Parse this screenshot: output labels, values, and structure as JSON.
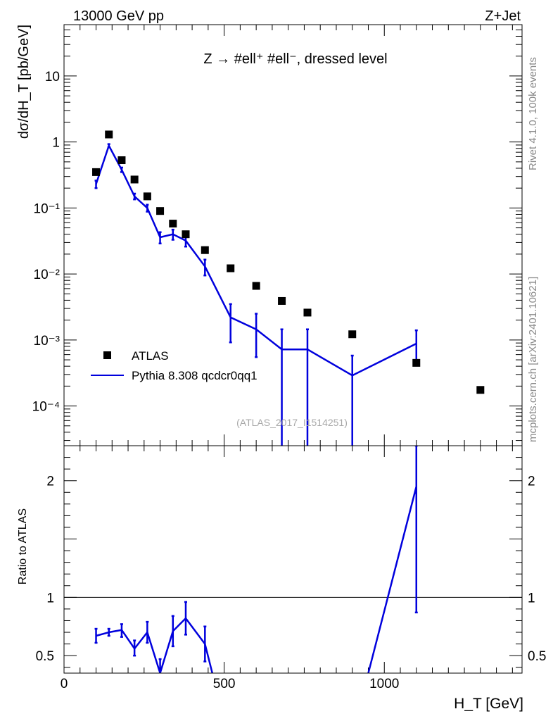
{
  "header": {
    "beam": "13000 GeV pp",
    "process": "Z+Jet"
  },
  "side_labels": {
    "rivet": "Rivet 4.1.0,  100k events",
    "mcplots": "mcplots.cern.ch [arXiv:2401.10621]"
  },
  "chart_data": {
    "type": "scatter",
    "title": "Z → #ell⁺ #ell⁻, dressed level",
    "analysis_label": "(ATLAS_2017_I1514251)",
    "xlabel": "H_T [GeV]",
    "xlim": [
      0,
      1430
    ],
    "xticks": [
      0,
      500,
      1000
    ],
    "main_panel": {
      "ylabel": "dσ/dH_T [pb/GeV]",
      "yscale": "log",
      "ylim": [
        2.5e-05,
        60
      ],
      "yticks": [
        {
          "value": 10,
          "label": "10"
        },
        {
          "value": 1,
          "label": "1"
        },
        {
          "value": 0.1,
          "label": "10⁻¹"
        },
        {
          "value": 0.01,
          "label": "10⁻²"
        },
        {
          "value": 0.001,
          "label": "10⁻³"
        },
        {
          "value": 0.0001,
          "label": "10⁻⁴"
        }
      ],
      "legend_placement": "lower-left",
      "series": [
        {
          "name": "ATLAS",
          "style": "markers",
          "color": "#000000",
          "x": [
            100,
            140,
            180,
            220,
            260,
            300,
            340,
            380,
            440,
            520,
            600,
            680,
            760,
            900,
            1100,
            1300
          ],
          "y": [
            0.35,
            1.3,
            0.53,
            0.27,
            0.15,
            0.09,
            0.058,
            0.04,
            0.023,
            0.0122,
            0.0066,
            0.0039,
            0.0026,
            0.00122,
            0.00045,
            0.000175
          ]
        },
        {
          "name": "Pythia 8.308 qcdcr0qq1",
          "style": "line",
          "color": "#0000dd",
          "x": [
            100,
            140,
            180,
            220,
            260,
            300,
            340,
            380,
            440,
            520,
            600,
            680,
            760,
            900,
            1100
          ],
          "y": [
            0.23,
            0.88,
            0.38,
            0.15,
            0.1,
            0.036,
            0.04,
            0.032,
            0.013,
            0.0022,
            0.00145,
            0.00072,
            0.00072,
            0.00029,
            0.00088
          ],
          "err_low": [
            0.2,
            0.83,
            0.35,
            0.135,
            0.088,
            0.029,
            0.033,
            0.026,
            0.0095,
            0.00092,
            0.00055,
            1e-05,
            1e-05,
            1e-05,
            0.00045
          ],
          "err_high": [
            0.26,
            0.93,
            0.41,
            0.165,
            0.112,
            0.043,
            0.047,
            0.038,
            0.0165,
            0.0035,
            0.0025,
            0.00145,
            0.00145,
            0.00058,
            0.0014
          ]
        }
      ]
    },
    "ratio_panel": {
      "ylabel": "Ratio to ATLAS",
      "ylim": [
        0.35,
        2.3
      ],
      "yticks": [
        {
          "value": 0.5,
          "label": "0.5"
        },
        {
          "value": 1,
          "label": "1"
        },
        {
          "value": 2,
          "label": "2"
        }
      ],
      "reference_line": 1,
      "series": [
        {
          "name": "Pythia 8.308 qcdcr0qq1",
          "color": "#0000dd",
          "x": [
            100,
            140,
            180,
            220,
            260,
            300,
            340,
            380,
            440,
            463,
            950,
            1100
          ],
          "y": [
            0.67,
            0.7,
            0.72,
            0.56,
            0.7,
            0.35,
            0.71,
            0.82,
            0.6,
            0.35,
            0.35,
            1.95
          ],
          "err_low": [
            0.61,
            0.67,
            0.66,
            0.5,
            0.61,
            0.22,
            0.58,
            0.68,
            0.45,
            null,
            null,
            0.87
          ],
          "err_high": [
            0.73,
            0.73,
            0.77,
            0.63,
            0.79,
            0.47,
            0.84,
            0.96,
            0.75,
            null,
            null,
            2.3
          ]
        }
      ]
    }
  }
}
